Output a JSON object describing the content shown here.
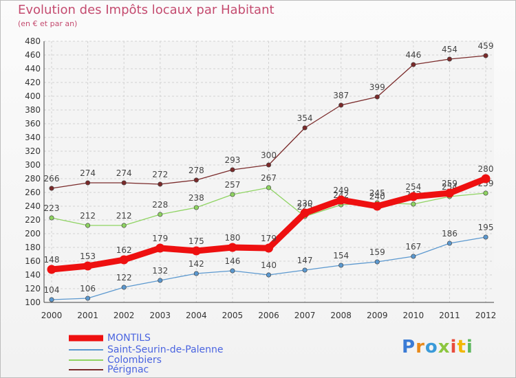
{
  "title": "Evolution des Impôts locaux par Habitant",
  "subtitle": "(en € et par an)",
  "logo": {
    "text": "Proxiti",
    "letter_colors": [
      "#3a7bd5",
      "#e8891a",
      "#3a9ad9",
      "#8cc63f",
      "#e84b3c",
      "#f2b705",
      "#5cb85c"
    ]
  },
  "chart_data": {
    "type": "line",
    "x": [
      "2000",
      "2001",
      "2002",
      "2003",
      "2004",
      "2005",
      "2006",
      "2007",
      "2008",
      "2009",
      "2010",
      "2011",
      "2012"
    ],
    "ylim": [
      100,
      480
    ],
    "yticks": [
      100,
      120,
      140,
      160,
      180,
      200,
      220,
      240,
      260,
      280,
      300,
      320,
      340,
      360,
      380,
      400,
      420,
      440,
      460,
      480
    ],
    "grid": true,
    "legend_position": "bottom-left",
    "series": [
      {
        "name": "Pérignac",
        "color": "#7a2a2a",
        "values": [
          266,
          274,
          274,
          272,
          278,
          293,
          300,
          354,
          387,
          399,
          446,
          454,
          459
        ],
        "labels": [
          "266",
          "274",
          "274",
          "272",
          "278",
          "293",
          "300",
          "354",
          "387",
          "399",
          "446",
          "454",
          "459"
        ]
      },
      {
        "name": "Colombiers",
        "color": "#8ed361",
        "values": [
          223,
          212,
          212,
          228,
          238,
          257,
          267,
          225,
          242,
          245,
          243,
          254,
          259
        ],
        "labels": [
          "223",
          "212",
          "212",
          "228",
          "238",
          "257",
          "267",
          "225",
          "242",
          "245",
          "243",
          "254",
          "259"
        ]
      },
      {
        "name": "Saint-Seurin-de-Palenne",
        "color": "#5b98cf",
        "values": [
          104,
          106,
          122,
          132,
          142,
          146,
          140,
          147,
          154,
          159,
          167,
          186,
          195
        ],
        "labels": [
          "104",
          "106",
          "122",
          "132",
          "142",
          "146",
          "140",
          "147",
          "154",
          "159",
          "167",
          "186",
          "195"
        ]
      },
      {
        "name": "MONTILS",
        "color": "#ee1010",
        "values": [
          148,
          153,
          162,
          179,
          175,
          180,
          179,
          230,
          249,
          240,
          254,
          259,
          280
        ],
        "labels": [
          "148",
          "153",
          "162",
          "179",
          "175",
          "180",
          "179",
          "230",
          "249",
          "240",
          "254",
          "259",
          "280"
        ]
      }
    ],
    "legend": [
      "MONTILS",
      "Saint-Seurin-de-Palenne",
      "Colombiers",
      "Pérignac"
    ],
    "legend_colors": [
      "#ee1010",
      "#5b98cf",
      "#8ed361",
      "#7a2a2a"
    ]
  }
}
